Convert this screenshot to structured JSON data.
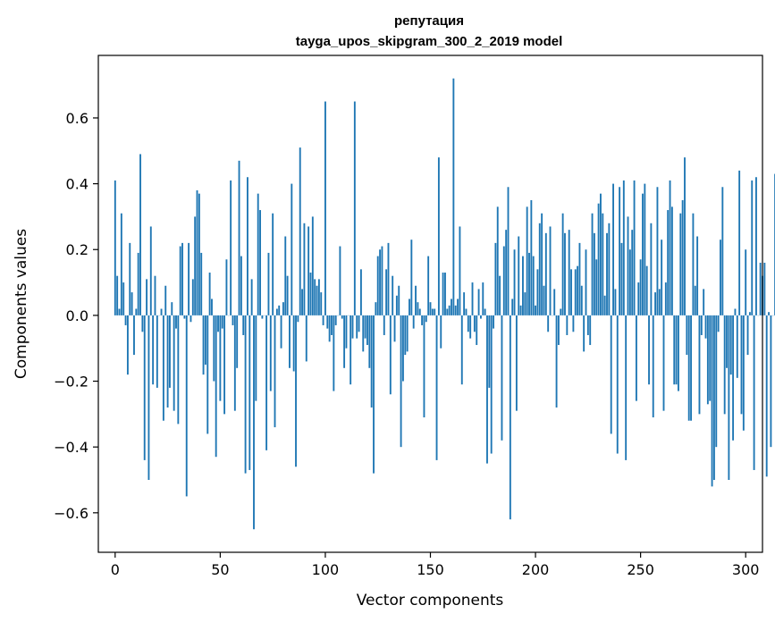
{
  "chart_data": {
    "type": "bar",
    "title": "репутация",
    "subtitle": "tayga_upos_skipgram_300_2_2019 model",
    "xlabel": "Vector components",
    "ylabel": "Components values",
    "xlim": [
      -8,
      308
    ],
    "ylim": [
      -0.72,
      0.79
    ],
    "xticks": [
      0,
      50,
      100,
      150,
      200,
      250,
      300
    ],
    "xtick_labels": [
      "0",
      "50",
      "100",
      "150",
      "200",
      "250",
      "300"
    ],
    "yticks": [
      -0.6,
      -0.4,
      -0.2,
      0.0,
      0.2,
      0.4,
      0.6
    ],
    "ytick_labels": [
      "−0.6",
      "−0.4",
      "−0.2",
      "0.0",
      "0.2",
      "0.4",
      "0.6"
    ],
    "bar_color": "#1f77b4",
    "grid": false,
    "legend": "none",
    "values": [
      0.41,
      0.12,
      0.02,
      0.31,
      0.1,
      -0.03,
      -0.18,
      0.22,
      0.07,
      -0.12,
      0.02,
      0.19,
      0.49,
      -0.05,
      -0.44,
      0.11,
      -0.5,
      0.27,
      -0.21,
      0.12,
      -0.22,
      0.0,
      0.02,
      -0.32,
      0.09,
      -0.28,
      -0.22,
      0.04,
      -0.29,
      -0.04,
      -0.33,
      0.21,
      0.22,
      -0.01,
      -0.55,
      0.22,
      -0.02,
      0.11,
      0.3,
      0.38,
      0.37,
      0.19,
      -0.18,
      -0.15,
      -0.36,
      0.13,
      0.05,
      -0.2,
      -0.43,
      -0.05,
      -0.26,
      -0.04,
      -0.3,
      0.17,
      0.0,
      0.41,
      -0.03,
      -0.29,
      -0.16,
      0.47,
      0.18,
      -0.06,
      -0.48,
      0.42,
      -0.47,
      0.11,
      -0.65,
      -0.26,
      0.37,
      0.32,
      -0.01,
      0.0,
      -0.41,
      0.19,
      -0.23,
      0.31,
      -0.34,
      0.02,
      0.03,
      -0.1,
      0.04,
      0.24,
      0.12,
      -0.16,
      0.4,
      -0.17,
      -0.46,
      -0.02,
      0.51,
      0.08,
      0.28,
      -0.14,
      0.27,
      0.13,
      0.3,
      0.11,
      0.09,
      0.11,
      0.07,
      -0.03,
      0.65,
      -0.04,
      -0.08,
      -0.06,
      -0.23,
      -0.03,
      0.0,
      0.21,
      -0.01,
      -0.16,
      -0.1,
      0.0,
      -0.21,
      -0.07,
      0.65,
      -0.07,
      -0.05,
      0.14,
      -0.11,
      -0.07,
      -0.09,
      -0.16,
      -0.28,
      -0.48,
      0.04,
      0.18,
      0.2,
      0.21,
      -0.06,
      0.14,
      0.22,
      -0.24,
      0.12,
      -0.08,
      0.06,
      0.09,
      -0.4,
      -0.2,
      -0.12,
      -0.11,
      0.05,
      0.23,
      -0.04,
      0.09,
      0.04,
      0.02,
      -0.03,
      -0.31,
      -0.02,
      0.18,
      0.04,
      0.02,
      0.02,
      -0.44,
      0.48,
      -0.1,
      0.13,
      0.13,
      0.02,
      0.03,
      0.05,
      0.72,
      0.03,
      0.05,
      0.27,
      -0.21,
      0.07,
      0.02,
      -0.05,
      -0.07,
      0.1,
      -0.05,
      -0.09,
      0.08,
      -0.01,
      0.1,
      0.02,
      -0.45,
      -0.22,
      -0.42,
      -0.04,
      0.22,
      0.33,
      0.12,
      -0.38,
      0.21,
      0.26,
      0.39,
      -0.62,
      0.05,
      0.2,
      -0.29,
      0.24,
      0.03,
      0.18,
      0.07,
      0.33,
      0.19,
      0.35,
      0.18,
      0.03,
      0.14,
      0.28,
      0.31,
      0.09,
      0.25,
      -0.05,
      0.27,
      0.0,
      0.08,
      -0.28,
      -0.09,
      0.02,
      0.31,
      0.25,
      -0.06,
      0.26,
      0.14,
      -0.05,
      0.14,
      0.15,
      0.22,
      0.09,
      -0.11,
      0.2,
      -0.06,
      -0.09,
      0.31,
      0.25,
      0.17,
      0.34,
      0.37,
      0.31,
      0.06,
      0.25,
      0.28,
      -0.36,
      0.4,
      0.08,
      -0.42,
      0.39,
      0.22,
      0.41,
      -0.44,
      0.3,
      0.2,
      0.26,
      0.41,
      -0.26,
      0.1,
      0.17,
      0.37,
      0.4,
      0.15,
      -0.21,
      0.28,
      -0.31,
      0.07,
      0.39,
      0.08,
      0.23,
      -0.29,
      0.1,
      0.32,
      0.41,
      0.33,
      -0.21,
      -0.21,
      -0.23,
      0.31,
      0.35,
      0.48,
      -0.12,
      -0.32,
      -0.32,
      0.31,
      0.09,
      0.24,
      -0.3,
      -0.06,
      0.08,
      -0.07,
      -0.27,
      -0.26,
      -0.52,
      -0.5,
      -0.4,
      -0.05,
      0.23,
      0.39,
      -0.3,
      -0.16,
      -0.5,
      -0.18,
      -0.38,
      0.02,
      -0.19,
      0.44,
      -0.3,
      -0.35,
      0.2,
      -0.12,
      0.01,
      0.41,
      -0.47,
      0.42,
      0.0,
      0.16,
      0.12,
      0.16,
      -0.49,
      0.01,
      -0.4,
      0.0,
      0.43,
      -0.1,
      -0.06,
      0.01
    ]
  }
}
